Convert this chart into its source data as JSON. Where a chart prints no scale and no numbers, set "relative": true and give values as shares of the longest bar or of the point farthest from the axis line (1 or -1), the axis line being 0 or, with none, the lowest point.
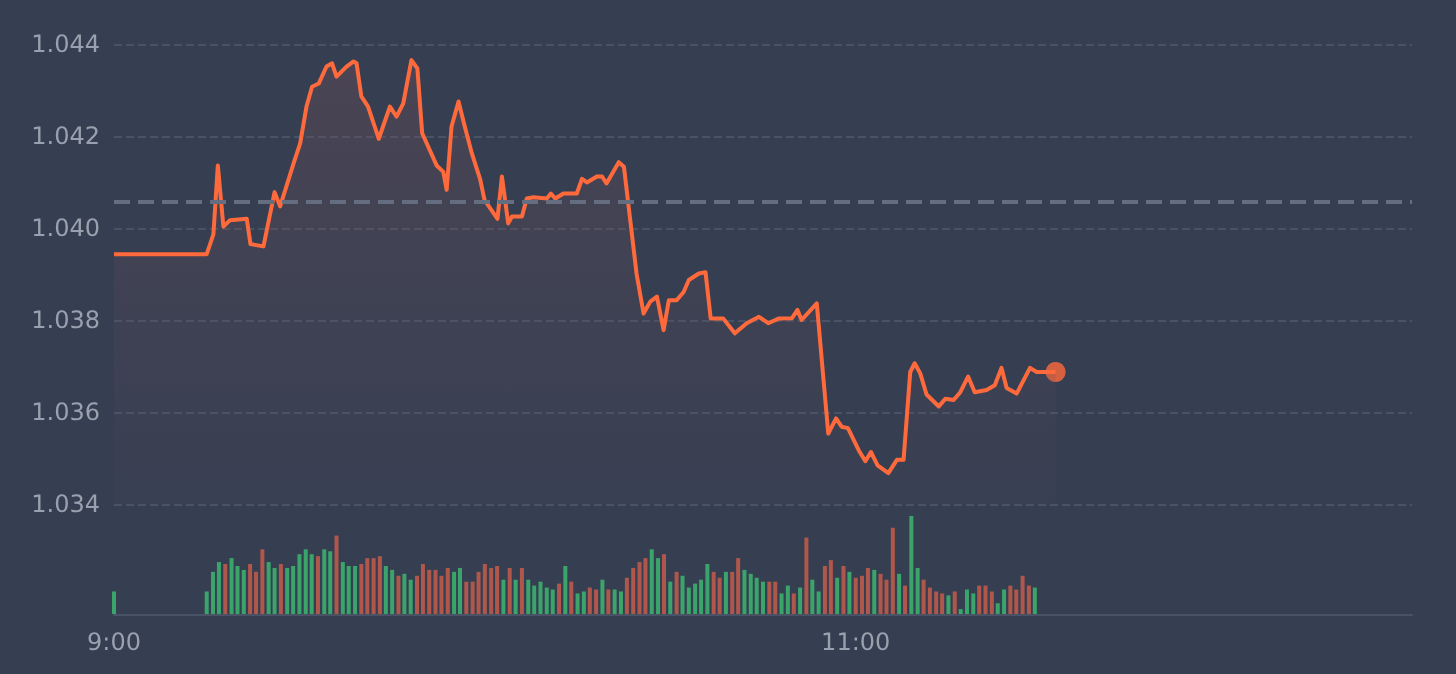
{
  "chart_data": [
    {
      "type": "area",
      "xlim": [
        9,
        12.5
      ],
      "ylim": [
        1.034,
        1.044
      ],
      "yticks": [
        {
          "value": 1.034,
          "label": "1.034"
        },
        {
          "value": 1.036,
          "label": "1.036"
        },
        {
          "value": 1.038,
          "label": "1.038"
        },
        {
          "value": 1.04,
          "label": "1.040"
        },
        {
          "value": 1.042,
          "label": "1.042"
        },
        {
          "value": 1.044,
          "label": "1.044"
        }
      ],
      "grid": "y",
      "tick_labels": "y",
      "marker": "none",
      "line_style": "solid",
      "ref_lines": [
        {
          "axis": "y",
          "value": 1.04058,
          "color": "#656d80",
          "line_style": "dashed"
        }
      ],
      "series": [
        {
          "color": "#ff6a3d",
          "x": [
            9.0,
            9.25,
            9.268,
            9.28,
            9.295,
            9.313,
            9.358,
            9.368,
            9.403,
            9.433,
            9.448,
            9.484,
            9.502,
            9.519,
            9.534,
            9.552,
            9.573,
            9.588,
            9.6,
            9.627,
            9.646,
            9.654,
            9.667,
            9.685,
            9.714,
            9.744,
            9.762,
            9.78,
            9.802,
            9.818,
            9.831,
            9.87,
            9.888,
            9.897,
            9.91,
            9.929,
            9.946,
            9.965,
            9.987,
            9.999,
            10.034,
            10.046,
            10.063,
            10.073,
            10.1,
            10.113,
            10.131,
            10.167,
            10.178,
            10.19,
            10.212,
            10.248,
            10.262,
            10.275,
            10.302,
            10.316,
            10.328,
            10.361,
            10.375,
            10.409,
            10.428,
            10.446,
            10.464,
            10.482,
            10.496,
            10.517,
            10.536,
            10.55,
            10.577,
            10.595,
            10.609,
            10.643,
            10.674,
            10.706,
            10.739,
            10.764,
            10.792,
            10.828,
            10.843,
            10.854,
            10.895,
            10.926,
            10.947,
            10.962,
            10.979,
            11.008,
            11.026,
            11.041,
            11.059,
            11.088,
            11.111,
            11.129,
            11.147,
            11.159,
            11.174,
            11.191,
            11.224,
            11.242,
            11.264,
            11.282,
            11.303,
            11.321,
            11.353,
            11.375,
            11.393,
            11.407,
            11.434,
            11.47,
            11.488,
            11.539
          ],
          "values": [
            1.03943,
            1.03943,
            1.03986,
            1.04136,
            1.04003,
            1.04017,
            1.0402,
            1.03965,
            1.0396,
            1.04078,
            1.04047,
            1.0414,
            1.04184,
            1.04264,
            1.04307,
            1.04314,
            1.04351,
            1.04358,
            1.04329,
            1.04351,
            1.04362,
            1.04358,
            1.04286,
            1.04264,
            1.04194,
            1.04264,
            1.04242,
            1.04271,
            1.04365,
            1.04347,
            1.04206,
            1.04136,
            1.04122,
            1.04083,
            1.0422,
            1.04275,
            1.0422,
            1.04162,
            1.04107,
            1.04061,
            1.0402,
            1.04112,
            1.0401,
            1.04025,
            1.04025,
            1.04064,
            1.04067,
            1.04064,
            1.04075,
            1.04064,
            1.04075,
            1.04075,
            1.04107,
            1.04099,
            1.04112,
            1.04112,
            1.04097,
            1.04143,
            1.04133,
            1.03901,
            1.03814,
            1.0384,
            1.03851,
            1.03778,
            1.03843,
            1.03843,
            1.03861,
            1.03887,
            1.03901,
            1.03904,
            1.03803,
            1.03803,
            1.03771,
            1.03793,
            1.03807,
            1.03793,
            1.03803,
            1.03804,
            1.03822,
            1.038,
            1.03836,
            1.03553,
            1.03586,
            1.03568,
            1.03565,
            1.03517,
            1.03493,
            1.03513,
            1.03484,
            1.03467,
            1.03496,
            1.03496,
            1.03687,
            1.03706,
            1.03684,
            1.03638,
            1.03612,
            1.03629,
            1.03626,
            1.03643,
            1.03677,
            1.03643,
            1.03648,
            1.03658,
            1.03696,
            1.03652,
            1.0364,
            1.03696,
            1.03687,
            1.03687
          ]
        },
        {
          "type": "scatter",
          "marker": "circle",
          "color": "#ff6a3d",
          "x": [
            11.539
          ],
          "values": [
            1.03687
          ]
        }
      ]
    },
    {
      "type": "bar",
      "relative": true,
      "xlim": [
        9,
        12.5
      ],
      "xticks": [
        {
          "value": 9,
          "label": "9:00"
        },
        {
          "value": 11,
          "label": "11:00"
        }
      ],
      "tick_labels": "x",
      "x": [
        9.0,
        9.25,
        9.267,
        9.283,
        9.3,
        9.317,
        9.333,
        9.35,
        9.367,
        9.383,
        9.4,
        9.417,
        9.433,
        9.45,
        9.467,
        9.483,
        9.5,
        9.517,
        9.533,
        9.55,
        9.567,
        9.583,
        9.6,
        9.617,
        9.633,
        9.65,
        9.667,
        9.683,
        9.7,
        9.717,
        9.733,
        9.75,
        9.767,
        9.783,
        9.8,
        9.817,
        9.833,
        9.85,
        9.867,
        9.883,
        9.9,
        9.917,
        9.933,
        9.95,
        9.967,
        9.983,
        10.0,
        10.017,
        10.033,
        10.05,
        10.067,
        10.083,
        10.1,
        10.117,
        10.133,
        10.15,
        10.167,
        10.183,
        10.2,
        10.217,
        10.233,
        10.25,
        10.267,
        10.283,
        10.3,
        10.317,
        10.333,
        10.35,
        10.367,
        10.383,
        10.4,
        10.417,
        10.433,
        10.45,
        10.467,
        10.483,
        10.5,
        10.517,
        10.533,
        10.55,
        10.567,
        10.583,
        10.6,
        10.617,
        10.633,
        10.65,
        10.667,
        10.683,
        10.7,
        10.717,
        10.733,
        10.75,
        10.767,
        10.783,
        10.8,
        10.817,
        10.833,
        10.85,
        10.867,
        10.883,
        10.9,
        10.917,
        10.933,
        10.95,
        10.967,
        10.983,
        11.0,
        11.017,
        11.033,
        11.05,
        11.067,
        11.083,
        11.1,
        11.117,
        11.133,
        11.15,
        11.167,
        11.183,
        11.2,
        11.217,
        11.233,
        11.25,
        11.267,
        11.283,
        11.3,
        11.317,
        11.333,
        11.35,
        11.367,
        11.383,
        11.4,
        11.417,
        11.433,
        11.45,
        11.467,
        11.483
      ],
      "values": [
        0.23,
        0.23,
        0.43,
        0.53,
        0.51,
        0.57,
        0.49,
        0.45,
        0.51,
        0.43,
        0.66,
        0.53,
        0.47,
        0.51,
        0.47,
        0.49,
        0.61,
        0.66,
        0.61,
        0.59,
        0.66,
        0.64,
        0.8,
        0.53,
        0.49,
        0.49,
        0.51,
        0.57,
        0.57,
        0.59,
        0.49,
        0.45,
        0.39,
        0.41,
        0.35,
        0.39,
        0.51,
        0.45,
        0.45,
        0.39,
        0.47,
        0.43,
        0.47,
        0.33,
        0.33,
        0.43,
        0.51,
        0.47,
        0.49,
        0.35,
        0.47,
        0.35,
        0.47,
        0.35,
        0.29,
        0.33,
        0.27,
        0.25,
        0.31,
        0.49,
        0.33,
        0.21,
        0.23,
        0.27,
        0.25,
        0.35,
        0.25,
        0.25,
        0.23,
        0.37,
        0.47,
        0.53,
        0.57,
        0.66,
        0.57,
        0.61,
        0.33,
        0.43,
        0.39,
        0.27,
        0.31,
        0.35,
        0.51,
        0.43,
        0.37,
        0.43,
        0.43,
        0.57,
        0.45,
        0.41,
        0.37,
        0.33,
        0.33,
        0.33,
        0.21,
        0.29,
        0.21,
        0.27,
        0.78,
        0.35,
        0.23,
        0.49,
        0.55,
        0.37,
        0.49,
        0.43,
        0.37,
        0.39,
        0.47,
        0.45,
        0.41,
        0.35,
        0.88,
        0.41,
        0.29,
        1,
        0.47,
        0.35,
        0.27,
        0.23,
        0.21,
        0.19,
        0.23,
        0.05,
        0.25,
        0.21,
        0.29,
        0.29,
        0.23,
        0.11,
        0.25,
        0.29,
        0.25,
        0.39,
        0.29,
        0.27
      ],
      "colors": [
        "#3aa46a",
        "#3aa46a",
        "#3aa46a",
        "#3aa46a",
        "#b0574c",
        "#3aa46a",
        "#3aa46a",
        "#3aa46a",
        "#b0574c",
        "#b0574c",
        "#b0574c",
        "#3aa46a",
        "#3aa46a",
        "#b0574c",
        "#3aa46a",
        "#3aa46a",
        "#3aa46a",
        "#3aa46a",
        "#3aa46a",
        "#b0574c",
        "#3aa46a",
        "#3aa46a",
        "#b0574c",
        "#3aa46a",
        "#3aa46a",
        "#3aa46a",
        "#b0574c",
        "#b0574c",
        "#b0574c",
        "#b0574c",
        "#3aa46a",
        "#3aa46a",
        "#b0574c",
        "#3aa46a",
        "#3aa46a",
        "#b0574c",
        "#b0574c",
        "#b0574c",
        "#b0574c",
        "#b0574c",
        "#b0574c",
        "#3aa46a",
        "#3aa46a",
        "#b0574c",
        "#b0574c",
        "#b0574c",
        "#b0574c",
        "#b0574c",
        "#b0574c",
        "#3aa46a",
        "#b0574c",
        "#3aa46a",
        "#b0574c",
        "#3aa46a",
        "#3aa46a",
        "#3aa46a",
        "#3aa46a",
        "#3aa46a",
        "#b0574c",
        "#3aa46a",
        "#b0574c",
        "#3aa46a",
        "#3aa46a",
        "#b0574c",
        "#b0574c",
        "#3aa46a",
        "#b0574c",
        "#3aa46a",
        "#3aa46a",
        "#b0574c",
        "#b0574c",
        "#b0574c",
        "#b0574c",
        "#3aa46a",
        "#3aa46a",
        "#b0574c",
        "#3aa46a",
        "#b0574c",
        "#3aa46a",
        "#3aa46a",
        "#3aa46a",
        "#3aa46a",
        "#3aa46a",
        "#b0574c",
        "#b0574c",
        "#3aa46a",
        "#b0574c",
        "#b0574c",
        "#3aa46a",
        "#3aa46a",
        "#3aa46a",
        "#3aa46a",
        "#b0574c",
        "#b0574c",
        "#3aa46a",
        "#3aa46a",
        "#b0574c",
        "#3aa46a",
        "#b0574c",
        "#3aa46a",
        "#3aa46a",
        "#b0574c",
        "#b0574c",
        "#3aa46a",
        "#b0574c",
        "#3aa46a",
        "#b0574c",
        "#b0574c",
        "#b0574c",
        "#3aa46a",
        "#b0574c",
        "#b0574c",
        "#b0574c",
        "#3aa46a",
        "#b0574c",
        "#3aa46a",
        "#3aa46a",
        "#b0574c",
        "#b0574c",
        "#b0574c",
        "#b0574c",
        "#3aa46a",
        "#b0574c",
        "#3aa46a",
        "#3aa46a",
        "#3aa46a",
        "#b0574c",
        "#b0574c",
        "#b0574c",
        "#3aa46a",
        "#3aa46a",
        "#b0574c",
        "#b0574c",
        "#b0574c",
        "#b0574c",
        "#3aa46a"
      ]
    }
  ]
}
